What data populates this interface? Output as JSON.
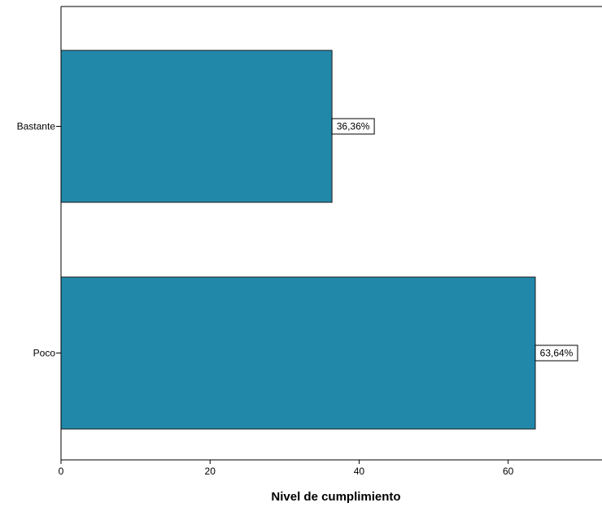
{
  "chart_data": {
    "type": "bar",
    "orientation": "horizontal",
    "title": "",
    "xlabel": "Nivel de cumplimiento",
    "ylabel": "",
    "categories": [
      "Bastante",
      "Poco"
    ],
    "values": [
      36.36,
      63.64
    ],
    "data_labels": [
      "36,36%",
      "63,64%"
    ],
    "x_ticks": [
      0,
      20,
      40,
      60
    ],
    "xlim": [
      0,
      72
    ],
    "grid": false,
    "legend": "none",
    "bar_color": "#2288aa",
    "bar_stroke": "#1a1a1a"
  }
}
